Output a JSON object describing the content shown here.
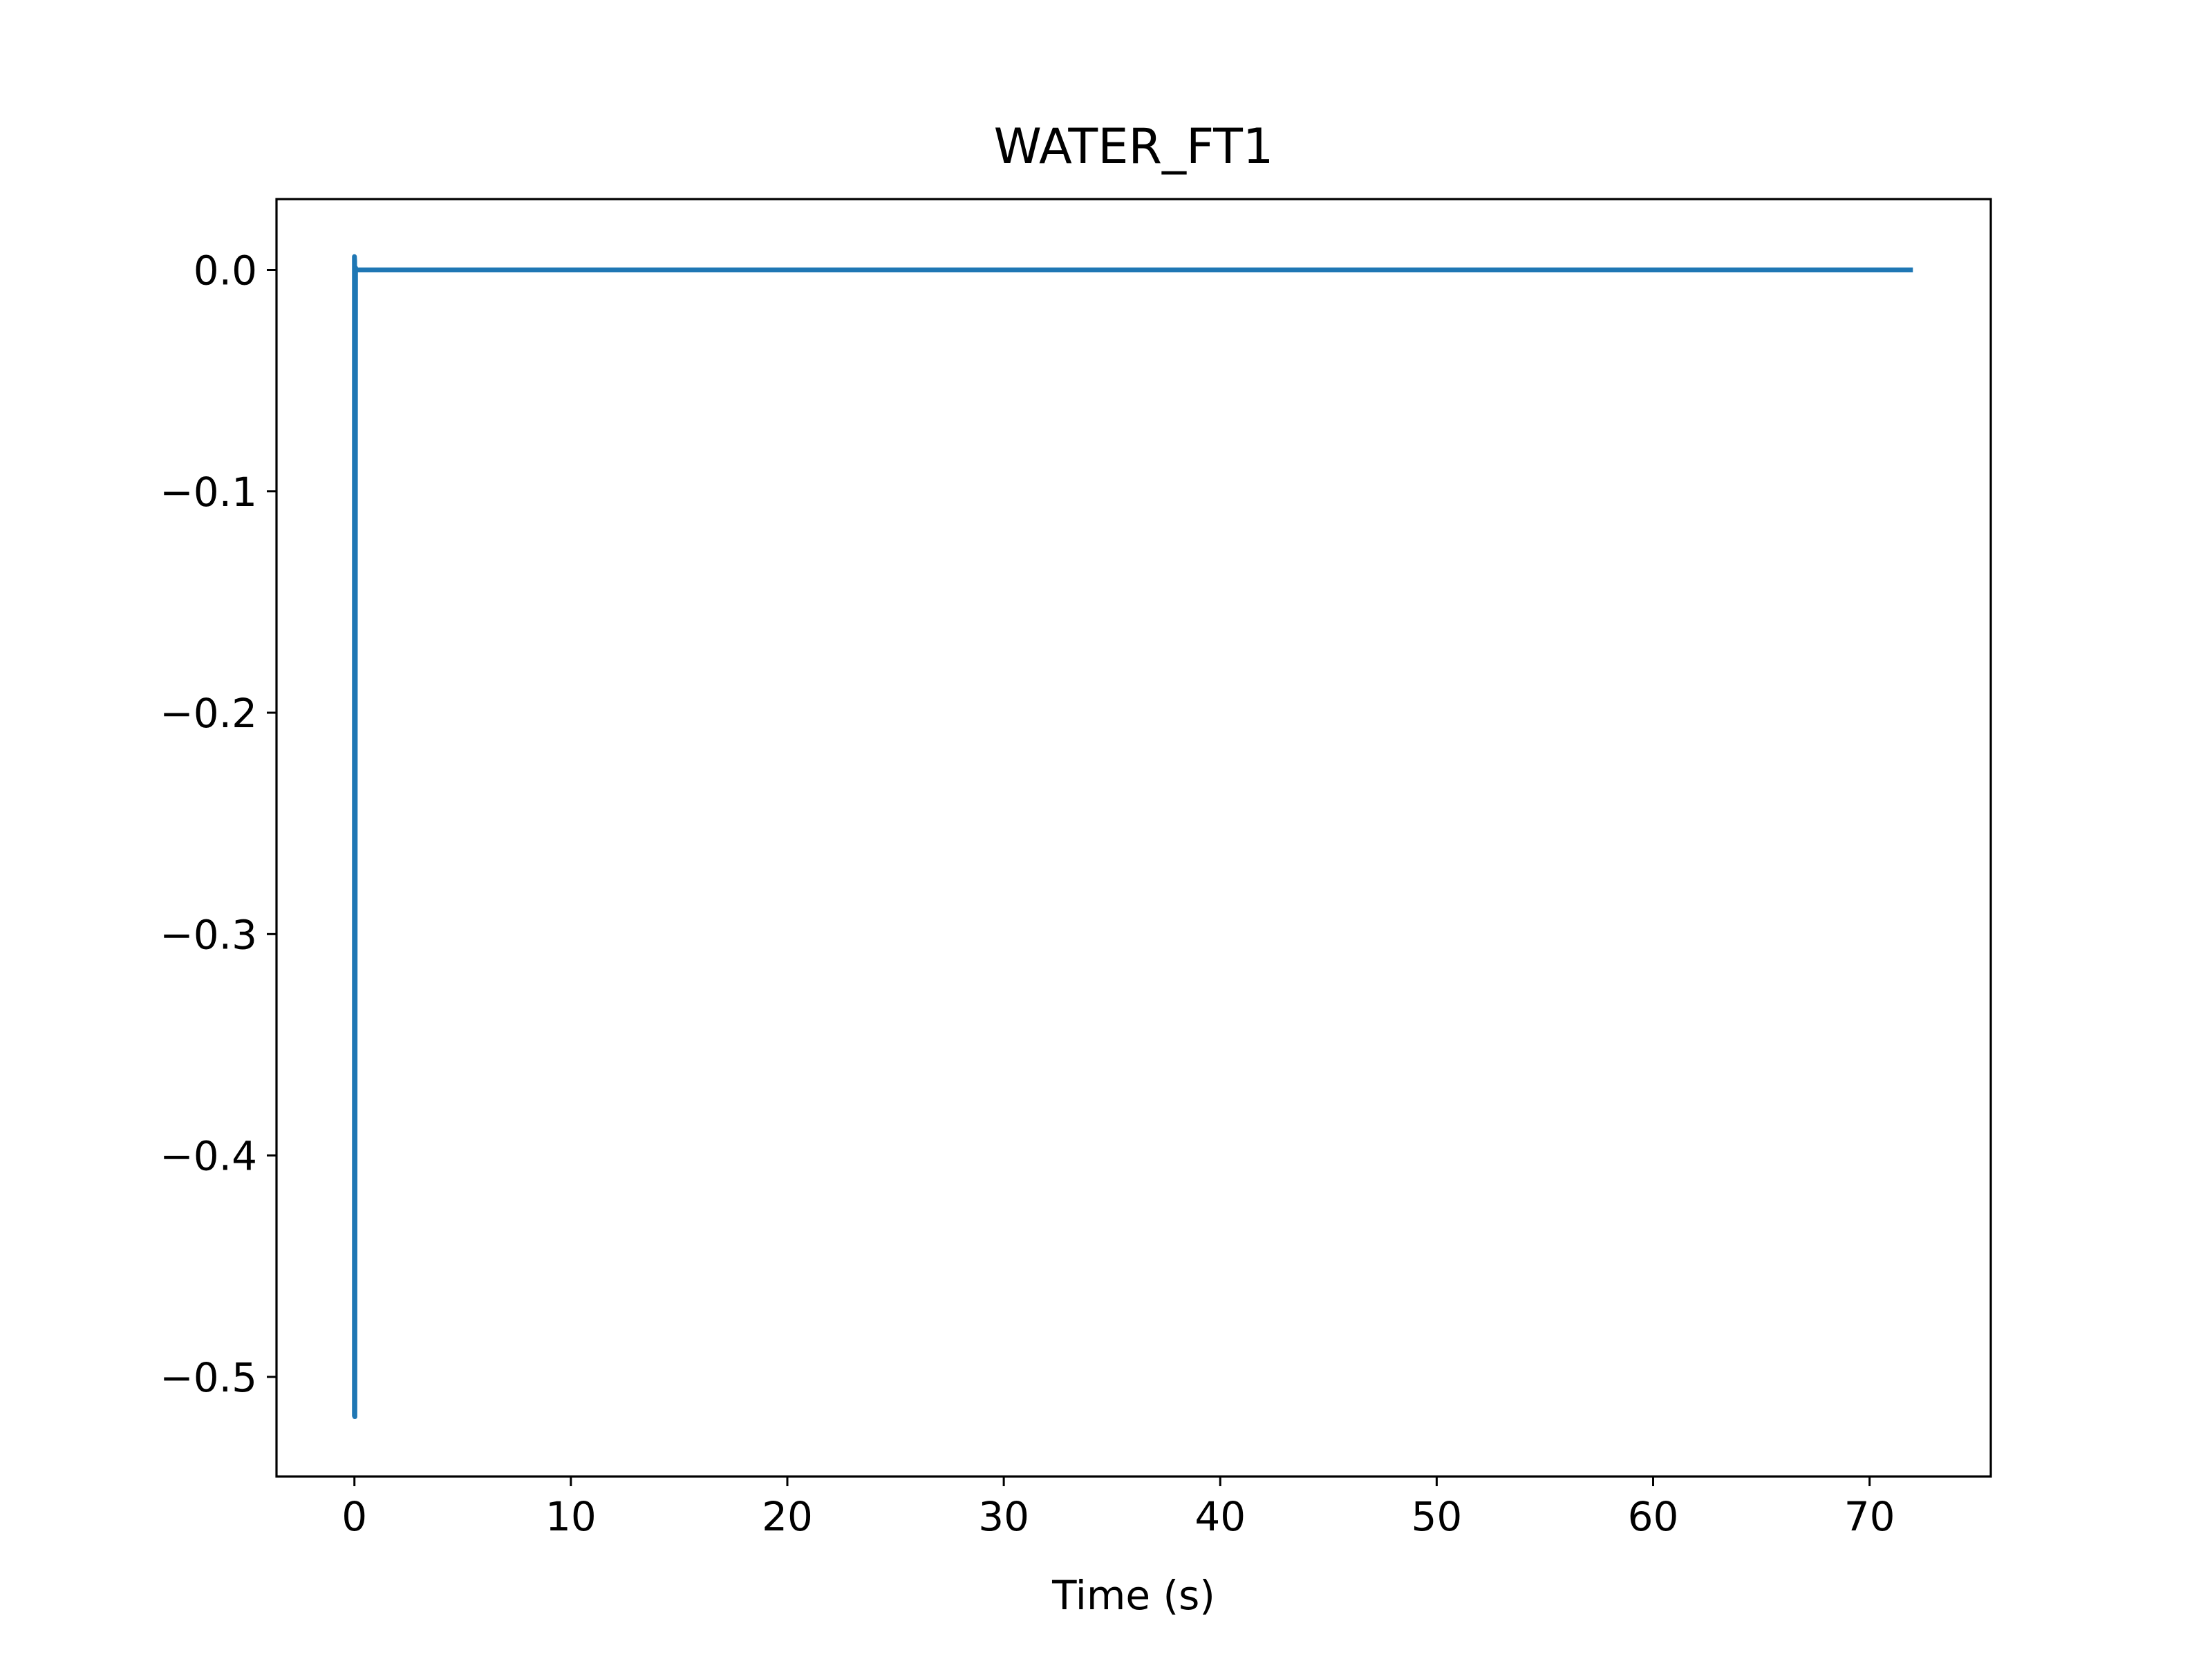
{
  "chart_data": {
    "type": "line",
    "title": "WATER_FT1",
    "xlabel": "Time (s)",
    "ylabel": "",
    "xlim": [
      -3.6,
      75.6
    ],
    "ylim": [
      -0.545,
      0.032
    ],
    "x_ticks": [
      0,
      10,
      20,
      30,
      40,
      50,
      60,
      70
    ],
    "x_tick_labels": [
      "0",
      "10",
      "20",
      "30",
      "40",
      "50",
      "60",
      "70"
    ],
    "y_ticks": [
      0.0,
      -0.1,
      -0.2,
      -0.3,
      -0.4,
      -0.5
    ],
    "y_tick_labels": [
      "0.0",
      "−0.1",
      "−0.2",
      "−0.3",
      "−0.4",
      "−0.5"
    ],
    "grid": false,
    "legend": "none",
    "series": [
      {
        "color": "#1f77b4",
        "x": [
          0.0,
          0.0,
          0.01,
          0.02,
          0.05,
          0.1,
          1.0,
          10.0,
          20.0,
          30.0,
          40.0,
          50.0,
          60.0,
          70.0,
          72.0
        ],
        "y": [
          -0.518,
          0.006,
          0.004,
          -0.518,
          0.001,
          0.0,
          0.0,
          0.0,
          0.0,
          0.0,
          0.0,
          0.0,
          0.0,
          0.0,
          0.0
        ]
      }
    ]
  }
}
